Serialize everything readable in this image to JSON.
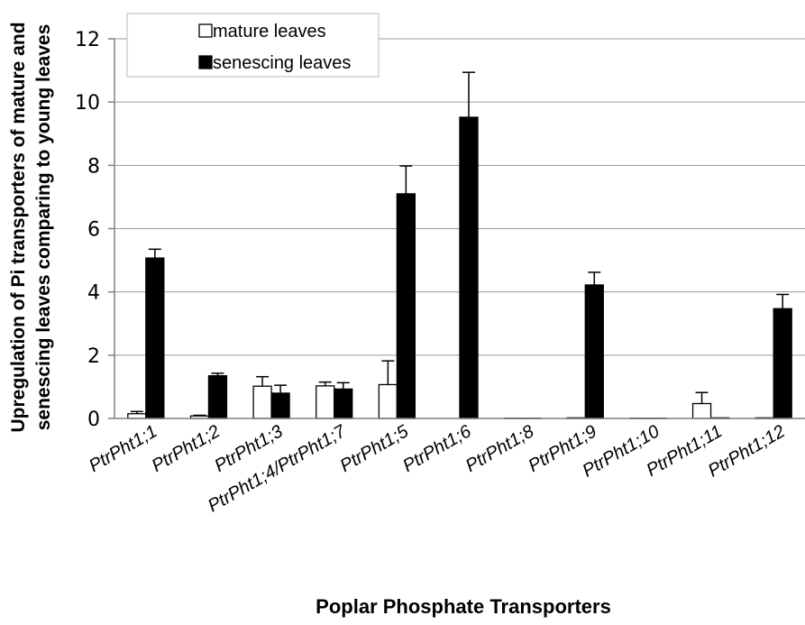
{
  "chart_data": {
    "type": "bar",
    "title": "",
    "xlabel": "Poplar Phosphate Transporters",
    "ylabel_line1": "Upregulation of Pi transporters of mature and",
    "ylabel_line2": "senescing leaves comparing to young leaves",
    "ylim": [
      0,
      12
    ],
    "yticks": [
      "0",
      "2",
      "4",
      "6",
      "8",
      "10",
      "12"
    ],
    "grid": true,
    "legend_position": "top-left",
    "categories": [
      "PtrPht1;1",
      "PtrPht1;2",
      "PtrPht1;3",
      "PtrPht1;4/PtrPht1;7",
      "PtrPht1;5",
      "PtrPht1;6",
      "PtrPht1;8",
      "PtrPht1;9",
      "PtrPht1;10",
      "PtrPht1;11",
      "PtrPht1;12"
    ],
    "series": [
      {
        "name": "mature leaves",
        "color": "#ffffff",
        "values": [
          0.15,
          0.08,
          1.02,
          1.03,
          1.07,
          0.0,
          0.01,
          0.02,
          0.01,
          0.47,
          0.02
        ],
        "errors": [
          0.07,
          0.02,
          0.3,
          0.12,
          0.75,
          0.0,
          0.0,
          0.0,
          0.0,
          0.35,
          0.0
        ]
      },
      {
        "name": "senescing leaves",
        "color": "#000000",
        "values": [
          5.07,
          1.35,
          0.8,
          0.93,
          7.1,
          9.52,
          0.01,
          4.22,
          0.01,
          0.02,
          3.47
        ],
        "errors": [
          0.28,
          0.08,
          0.25,
          0.2,
          0.88,
          1.42,
          0.0,
          0.4,
          0.0,
          0.0,
          0.45
        ]
      }
    ]
  }
}
